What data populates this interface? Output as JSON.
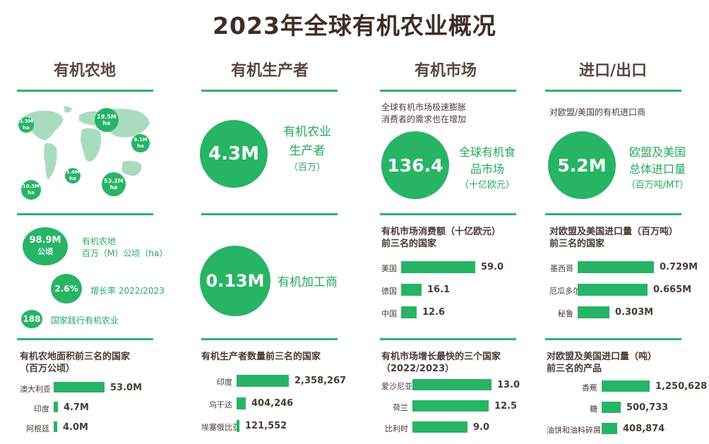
{
  "title": "2023年全球有机农业概况",
  "columns": [
    "有机农地",
    "有机生产者",
    "有机市场",
    "进口/出口"
  ],
  "map": {
    "bubbles": [
      {
        "value": "3.3M",
        "unit": "ha"
      },
      {
        "value": "19.5M",
        "unit": "ha"
      },
      {
        "value": "9.1M",
        "unit": "ha"
      },
      {
        "value": "3.4M",
        "unit": "ha"
      },
      {
        "value": "53.2M",
        "unit": "ha"
      },
      {
        "value": "10.3M",
        "unit": "ha"
      }
    ]
  },
  "producers": {
    "value": "4.3M",
    "label_line1": "有机农业",
    "label_line2": "生产者",
    "unit": "（百万）"
  },
  "market": {
    "intro_line1": "全球有机市场极速膨胀",
    "intro_line2": "消费者的需求也在增加",
    "value": "136.4",
    "label_line1": "全球有机食",
    "label_line2": "品市场",
    "unit": "（十亿欧元）"
  },
  "trade": {
    "intro": "对欧盟/美国的有机进口商",
    "value": "5.2M",
    "label_line1": "欧盟及美国",
    "label_line2": "总体进口量",
    "unit": "（百万吨/MT）"
  },
  "land_stats": {
    "area_value": "98.9M",
    "area_unit": "公顷",
    "area_label_line1": "有机农地",
    "area_label_line2": "百万（M）公顷（ha）",
    "growth_value": "2.6%",
    "growth_label": "增长率 2022/2023",
    "countries_value": "188",
    "countries_label": "国家践行有机农业"
  },
  "processors": {
    "value": "0.13M",
    "label": "有机加工商"
  },
  "chart_data": [
    {
      "type": "bar",
      "title": "有机市场消费额（十亿欧元）前三名的国家",
      "title_line1": "有机市场消费额（十亿欧元）",
      "title_line2": "前三名的国家",
      "categories": [
        "美国",
        "德国",
        "中国"
      ],
      "values": [
        59.0,
        16.1,
        12.6
      ],
      "labels": [
        "59.0",
        "16.1",
        "12.6"
      ]
    },
    {
      "type": "bar",
      "title": "对欧盟及美国进口量（百万吨）前三名的国家",
      "title_line1": "对欧盟及美国进口量（百万吨）",
      "title_line2": "前三名的国家",
      "categories": [
        "墨西哥",
        "厄瓜多尔",
        "秘鲁"
      ],
      "values": [
        0.729,
        0.665,
        0.303
      ],
      "labels": [
        "0.729M",
        "0.665M",
        "0.303M"
      ]
    },
    {
      "type": "bar",
      "title": "有机农地面积前三名的国家（百万公顷）",
      "title_line1": "有机农地面积前三名的国家",
      "title_line2": "（百万公顷）",
      "categories": [
        "澳大利亚",
        "印度",
        "阿根廷"
      ],
      "values": [
        53.0,
        4.7,
        4.0
      ],
      "labels": [
        "53.0M",
        "4.7M",
        "4.0M"
      ]
    },
    {
      "type": "bar",
      "title": "有机生产者数量前三名的国家",
      "title_line1": "有机生产者数量前三名的国家",
      "title_line2": "",
      "categories": [
        "印度",
        "乌干达",
        "埃塞俄比亚"
      ],
      "values": [
        2358267,
        404246,
        121552
      ],
      "labels": [
        "2,358,267",
        "404,246",
        "121,552"
      ]
    },
    {
      "type": "bar",
      "title": "有机市场增长最快的三个国家（2022/2023）",
      "title_line1": "有机市场增长最快的三个国家",
      "title_line2": "（2022/2023）",
      "categories": [
        "爱沙尼亚",
        "荷兰",
        "比利时"
      ],
      "values": [
        13.0,
        12.5,
        9.0
      ],
      "labels": [
        "13.0",
        "12.5",
        "9.0"
      ]
    },
    {
      "type": "bar",
      "title": "对欧盟及美国进口量（吨）前三名的产品",
      "title_line1": "对欧盟及美国进口量（吨）",
      "title_line2": "前三名的产品",
      "categories": [
        "香蕉",
        "糖",
        "油饼和油料碎屑"
      ],
      "values": [
        1250628,
        500733,
        408874
      ],
      "labels": [
        "1,250,628",
        "500,733",
        "408,874"
      ]
    }
  ]
}
